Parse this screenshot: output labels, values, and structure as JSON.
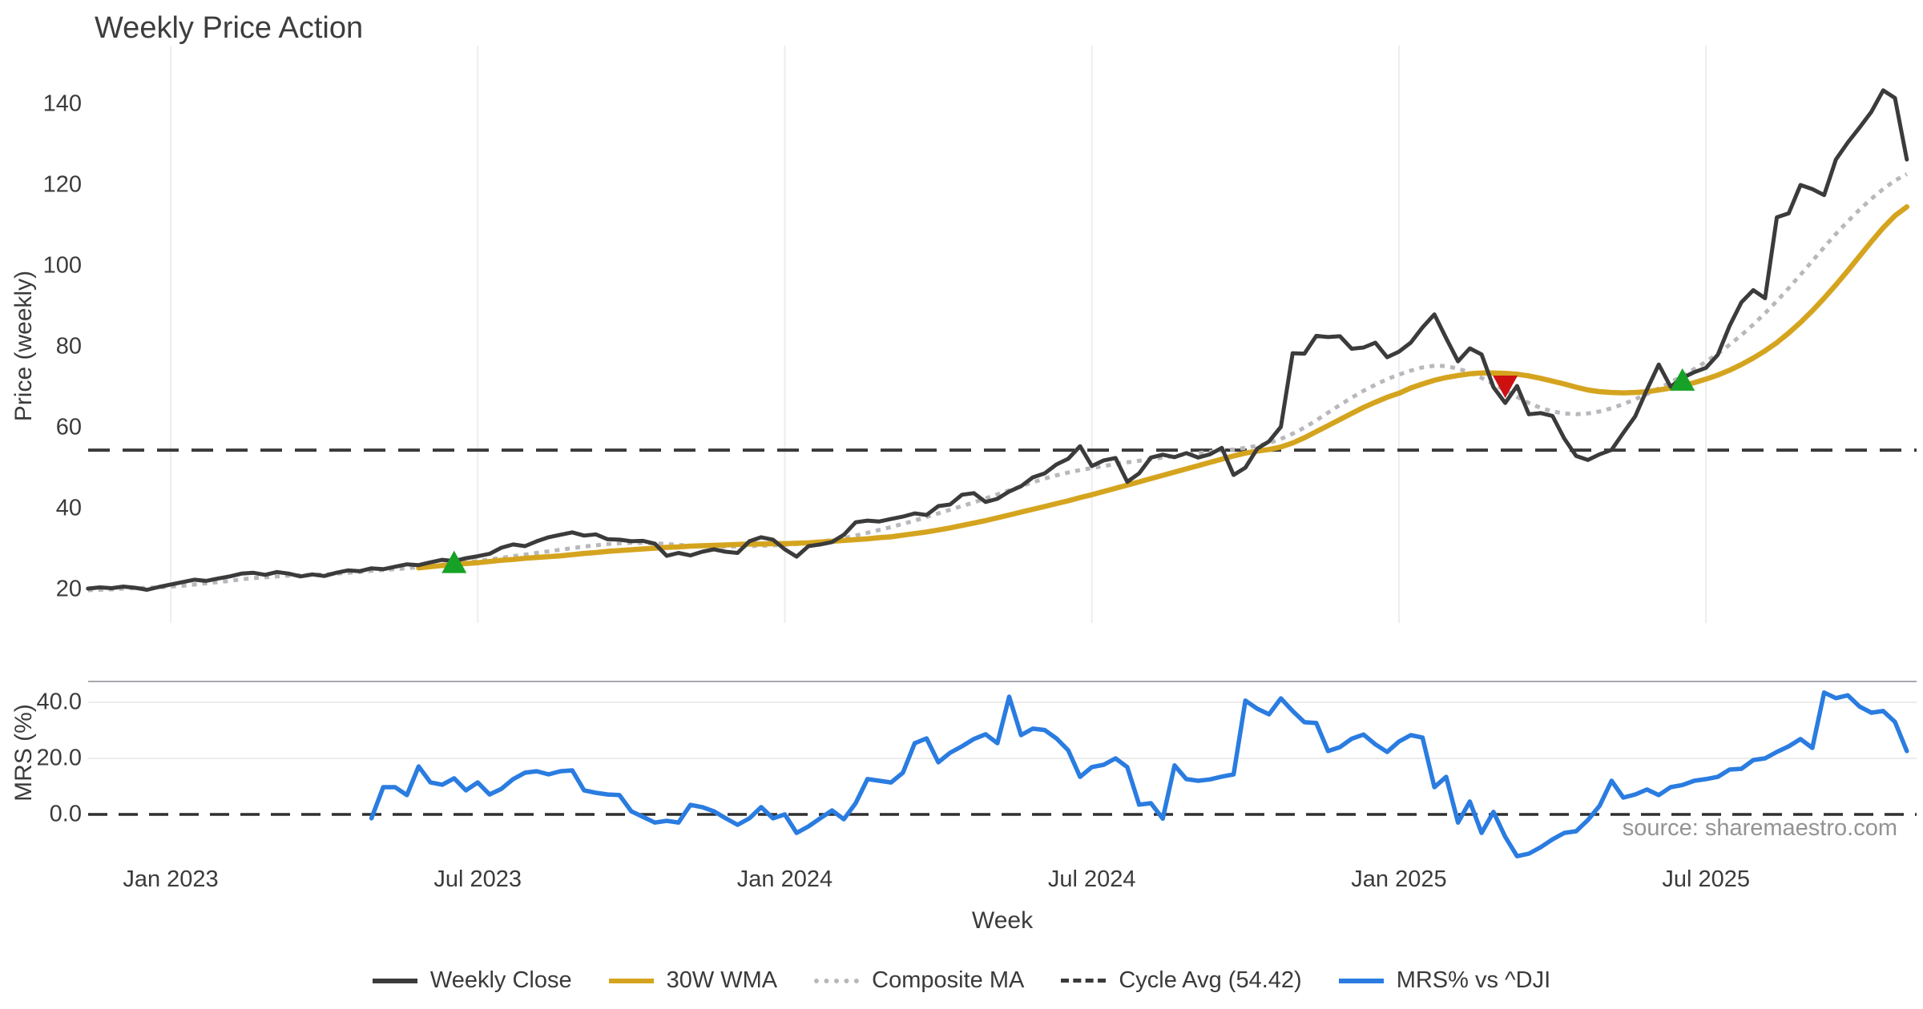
{
  "title": "Weekly Price Action",
  "source_note": "source: sharemaestro.com",
  "colors": {
    "close": "#3b3b3b",
    "wma": "#d5a41f",
    "composite": "#b8b8bc",
    "cycle_dash": "#3a3a3a",
    "mrs_blue": "#2a7ce0",
    "marker_up_green": "#16a226",
    "marker_down_red": "#cd1111",
    "gridline": "#ededf2",
    "panel_spine": "#a8a8b0",
    "hgridline": "#ececec",
    "text": "#3b3b3b",
    "source_text": "#939393"
  },
  "chart_data": [
    {
      "type": "line",
      "panel": "price",
      "title": "Weekly Price Action",
      "ylabel": "Price (weekly)",
      "xlabel": "Week",
      "ylim": [
        12,
        152
      ],
      "yticks": [
        20,
        40,
        60,
        80,
        100,
        120,
        140
      ],
      "grid": "vertical-only",
      "xticks": [
        {
          "week": 7,
          "label": "Jan 2023"
        },
        {
          "week": 33,
          "label": "Jul 2023"
        },
        {
          "week": 59,
          "label": "Jan 2024"
        },
        {
          "week": 85,
          "label": "Jul 2024"
        },
        {
          "week": 111,
          "label": "Jan 2025"
        },
        {
          "week": 137,
          "label": "Jul 2025"
        }
      ],
      "cycle_avg_value": 54.42,
      "series": [
        {
          "name": "Weekly Close",
          "style": "solid",
          "color_key": "close",
          "start_week": 0,
          "values": [
            20.2,
            20.5,
            20.3,
            20.7,
            20.4,
            19.9,
            20.6,
            21.2,
            21.8,
            22.4,
            22.1,
            22.7,
            23.2,
            23.9,
            24.1,
            23.6,
            24.3,
            23.9,
            23.2,
            23.7,
            23.3,
            24.1,
            24.7,
            24.5,
            25.2,
            25.0,
            25.6,
            26.2,
            26.0,
            26.7,
            27.3,
            27.0,
            27.7,
            28.2,
            28.8,
            30.3,
            31.1,
            30.7,
            31.9,
            32.9,
            33.5,
            34.1,
            33.3,
            33.6,
            32.4,
            32.3,
            31.9,
            32.0,
            31.3,
            28.3,
            29.0,
            28.4,
            29.3,
            29.9,
            29.3,
            29.0,
            31.9,
            32.9,
            32.3,
            29.9,
            28.1,
            30.7,
            31.1,
            31.7,
            33.5,
            36.6,
            37.0,
            36.8,
            37.4,
            38.0,
            38.8,
            38.4,
            40.6,
            41.0,
            43.4,
            43.8,
            41.6,
            42.4,
            44.2,
            45.5,
            47.7,
            48.7,
            50.9,
            52.3,
            55.4,
            50.5,
            51.9,
            52.5,
            46.6,
            48.7,
            52.6,
            53.3,
            52.7,
            53.7,
            52.6,
            53.4,
            55.0,
            48.3,
            50.1,
            54.8,
            56.6,
            60.2,
            78.4,
            78.3,
            82.7,
            82.4,
            82.6,
            79.5,
            79.8,
            81.0,
            77.4,
            78.8,
            81.0,
            84.8,
            88.0,
            82.1,
            76.4,
            79.6,
            78.1,
            70.0,
            66.1,
            70.3,
            63.3,
            63.6,
            62.9,
            57.3,
            53.0,
            52.0,
            53.4,
            54.5,
            58.7,
            62.8,
            69.4,
            75.6,
            70.1,
            72.3,
            73.7,
            74.8,
            78.0,
            85.2,
            91.0,
            94.0,
            92.0,
            112.0,
            113.0,
            120.0,
            119.0,
            117.5,
            126.3,
            130.5,
            134.2,
            138.1,
            143.4,
            141.5,
            126.3
          ]
        },
        {
          "name": "30W WMA",
          "style": "solid",
          "color_key": "wma",
          "start_week": 28,
          "values": [
            25.3,
            25.6,
            25.9,
            26.1,
            26.4,
            26.6,
            26.9,
            27.2,
            27.4,
            27.7,
            27.9,
            28.1,
            28.3,
            28.6,
            28.9,
            29.1,
            29.4,
            29.6,
            29.8,
            30.0,
            30.2,
            30.4,
            30.5,
            30.7,
            30.8,
            30.9,
            31.0,
            31.1,
            31.2,
            31.2,
            31.3,
            31.3,
            31.4,
            31.5,
            31.7,
            31.9,
            32.1,
            32.3,
            32.5,
            32.8,
            33.0,
            33.4,
            33.8,
            34.2,
            34.7,
            35.2,
            35.8,
            36.4,
            37.0,
            37.7,
            38.4,
            39.1,
            39.8,
            40.5,
            41.2,
            41.9,
            42.7,
            43.4,
            44.2,
            45.0,
            45.8,
            46.6,
            47.4,
            48.2,
            49.0,
            49.8,
            50.6,
            51.4,
            52.2,
            53.0,
            53.7,
            54.2,
            54.6,
            55.2,
            56.2,
            57.5,
            59.0,
            60.5,
            62.0,
            63.5,
            65.0,
            66.3,
            67.5,
            68.5,
            69.8,
            70.8,
            71.7,
            72.4,
            72.9,
            73.3,
            73.5,
            73.5,
            73.4,
            73.2,
            72.8,
            72.2,
            71.5,
            70.8,
            70.0,
            69.3,
            68.9,
            68.7,
            68.6,
            68.7,
            68.9,
            69.3,
            69.8,
            70.4,
            71.1,
            72.0,
            73.0,
            74.2,
            75.6,
            77.2,
            79.0,
            81.0,
            83.4,
            86.0,
            88.9,
            92.0,
            95.3,
            98.8,
            102.4,
            106.0,
            109.4,
            112.4,
            114.6
          ]
        },
        {
          "name": "Composite MA",
          "style": "dotted",
          "color_key": "composite",
          "start_week": 0,
          "values": [
            19.8,
            19.9,
            20.0,
            20.2,
            20.3,
            20.4,
            20.5,
            20.7,
            20.9,
            21.2,
            21.5,
            21.8,
            22.1,
            22.5,
            22.8,
            23.0,
            23.2,
            23.4,
            23.5,
            23.6,
            23.7,
            23.9,
            24.1,
            24.3,
            24.6,
            24.8,
            25.0,
            25.2,
            25.5,
            25.8,
            26.1,
            26.4,
            26.7,
            27.0,
            27.4,
            27.8,
            28.2,
            28.6,
            29.0,
            29.4,
            29.8,
            30.2,
            30.6,
            30.9,
            31.2,
            31.4,
            31.5,
            31.5,
            31.4,
            31.2,
            31.0,
            30.8,
            30.7,
            30.6,
            30.6,
            30.6,
            30.7,
            30.8,
            30.9,
            31.0,
            31.2,
            31.5,
            31.8,
            32.2,
            32.7,
            33.3,
            34.0,
            34.7,
            35.4,
            36.2,
            37.0,
            37.9,
            38.8,
            39.7,
            40.6,
            41.5,
            42.5,
            43.5,
            44.5,
            45.5,
            46.5,
            47.4,
            48.2,
            48.9,
            49.5,
            50.0,
            50.5,
            51.0,
            51.4,
            51.8,
            52.2,
            52.6,
            53.0,
            53.4,
            53.7,
            54.0,
            54.3,
            54.6,
            55.0,
            55.5,
            56.2,
            57.2,
            58.5,
            60.0,
            61.8,
            63.7,
            65.6,
            67.4,
            69.1,
            70.6,
            72.0,
            73.1,
            74.1,
            74.9,
            75.3,
            75.2,
            74.6,
            73.6,
            72.3,
            70.8,
            69.2,
            67.6,
            66.1,
            64.9,
            64.0,
            63.5,
            63.3,
            63.5,
            64.0,
            64.8,
            65.8,
            67.0,
            68.3,
            69.7,
            71.2,
            72.8,
            74.5,
            76.3,
            78.3,
            80.5,
            82.9,
            85.5,
            88.3,
            91.3,
            94.5,
            97.8,
            101.2,
            104.6,
            107.9,
            111.0,
            113.9,
            116.6,
            119.0,
            121.1,
            122.7
          ]
        },
        {
          "name": "Cycle Avg (54.42)",
          "style": "dashed",
          "color_key": "cycle_dash",
          "hline": 54.42
        }
      ],
      "markers": [
        {
          "shape": "triangle-up",
          "week": 31,
          "value": 26.6,
          "color_key": "marker_up_green"
        },
        {
          "shape": "triangle-down",
          "week": 120,
          "value": 70.3,
          "color_key": "marker_down_red"
        },
        {
          "shape": "triangle-up",
          "week": 135,
          "value": 71.7,
          "color_key": "marker_up_green"
        }
      ]
    },
    {
      "type": "line",
      "panel": "mrs",
      "ylabel": "MRS (%)",
      "ylim": [
        -16,
        48
      ],
      "yticks": [
        0,
        20,
        40
      ],
      "ytick_labels": [
        "0.0",
        "20.0",
        "40.0"
      ],
      "zero_line_dashed": 0,
      "series": [
        {
          "name": "MRS% vs ^DJI",
          "style": "solid",
          "color_key": "mrs_blue",
          "start_week": 24,
          "values": [
            -1.4,
            9.7,
            9.7,
            6.9,
            17.1,
            11.4,
            10.6,
            12.9,
            8.6,
            11.4,
            7.1,
            9.1,
            12.6,
            14.9,
            15.4,
            14.3,
            15.4,
            15.7,
            8.6,
            7.7,
            7.1,
            6.9,
            1.1,
            -0.9,
            -2.9,
            -2.3,
            -2.9,
            3.4,
            2.6,
            1.1,
            -1.4,
            -3.7,
            -1.4,
            2.6,
            -1.4,
            0.0,
            -6.6,
            -4.3,
            -1.4,
            1.4,
            -1.7,
            4.0,
            12.6,
            12.0,
            11.4,
            14.9,
            25.4,
            27.1,
            18.6,
            22.0,
            24.3,
            26.9,
            28.6,
            25.4,
            42.0,
            28.3,
            30.6,
            30.1,
            27.1,
            22.9,
            13.4,
            16.9,
            17.7,
            20.0,
            16.9,
            3.5,
            4.0,
            -1.5,
            17.5,
            12.6,
            12.0,
            12.5,
            13.5,
            14.3,
            40.6,
            37.7,
            35.7,
            41.4,
            36.9,
            32.9,
            32.6,
            22.6,
            24.0,
            27.0,
            28.5,
            25.0,
            22.3,
            26.0,
            28.3,
            27.4,
            9.7,
            13.4,
            -2.9,
            4.6,
            -6.6,
            0.9,
            -8.0,
            -14.9,
            -14.0,
            -11.7,
            -8.9,
            -6.6,
            -6.0,
            -2.0,
            3.1,
            12.0,
            6.0,
            7.1,
            8.9,
            6.9,
            9.7,
            10.5,
            12.0,
            12.6,
            13.4,
            16.0,
            16.3,
            19.4,
            20.0,
            22.3,
            24.3,
            26.9,
            23.7,
            43.5,
            41.5,
            42.5,
            38.5,
            36.3,
            36.9,
            33.0,
            22.6
          ]
        }
      ]
    }
  ],
  "legend": [
    {
      "label": "Weekly Close",
      "style": "solid",
      "color_key": "close"
    },
    {
      "label": "30W WMA",
      "style": "solid",
      "color_key": "wma"
    },
    {
      "label": "Composite MA",
      "style": "dotted",
      "color_key": "composite"
    },
    {
      "label": "Cycle Avg (54.42)",
      "style": "dashed",
      "color_key": "cycle_dash"
    },
    {
      "label": "MRS% vs ^DJI",
      "style": "solid",
      "color_key": "mrs_blue"
    }
  ]
}
